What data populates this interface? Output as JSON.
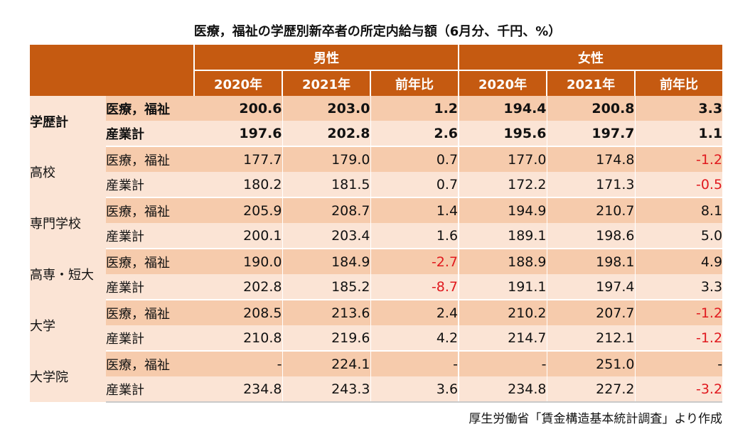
{
  "title": "医療，福祉の学歴別新卒者の所定内給与額（6月分、千円、%）",
  "source": "厚生労働省「賃金構造基本統計調査」より作成",
  "colors": {
    "header": "#c55a11",
    "row_odd": "#f6cbac",
    "row_even": "#fbe4d5",
    "negative": "#e0191e"
  },
  "chart_data": {
    "type": "table",
    "title": "医療，福祉の学歴別新卒者の所定内給与額（6月分、千円、%）",
    "groups": [
      {
        "label": "男性",
        "columns": [
          "2020年",
          "2021年",
          "前年比"
        ]
      },
      {
        "label": "女性",
        "columns": [
          "2020年",
          "2021年",
          "前年比"
        ]
      }
    ],
    "rows": [
      {
        "category": "学歴計",
        "items": [
          {
            "label": "医療，福祉",
            "values": [
              "200.6",
              "203.0",
              "1.2",
              "194.4",
              "200.8",
              "3.3"
            ]
          },
          {
            "label": "産業計",
            "values": [
              "197.6",
              "202.8",
              "2.6",
              "195.6",
              "197.7",
              "1.1"
            ]
          }
        ]
      },
      {
        "category": "高校",
        "items": [
          {
            "label": "医療，福祉",
            "values": [
              "177.7",
              "179.0",
              "0.7",
              "177.0",
              "174.8",
              "-1.2"
            ]
          },
          {
            "label": "産業計",
            "values": [
              "180.2",
              "181.5",
              "0.7",
              "172.2",
              "171.3",
              "-0.5"
            ]
          }
        ]
      },
      {
        "category": "専門学校",
        "items": [
          {
            "label": "医療，福祉",
            "values": [
              "205.9",
              "208.7",
              "1.4",
              "194.9",
              "210.7",
              "8.1"
            ]
          },
          {
            "label": "産業計",
            "values": [
              "200.1",
              "203.4",
              "1.6",
              "189.1",
              "198.6",
              "5.0"
            ]
          }
        ]
      },
      {
        "category": "高専・短大",
        "items": [
          {
            "label": "医療，福祉",
            "values": [
              "190.0",
              "184.9",
              "-2.7",
              "188.9",
              "198.1",
              "4.9"
            ]
          },
          {
            "label": "産業計",
            "values": [
              "202.8",
              "185.2",
              "-8.7",
              "191.1",
              "197.4",
              "3.3"
            ]
          }
        ]
      },
      {
        "category": "大学",
        "items": [
          {
            "label": "医療，福祉",
            "values": [
              "208.5",
              "213.6",
              "2.4",
              "210.2",
              "207.7",
              "-1.2"
            ]
          },
          {
            "label": "産業計",
            "values": [
              "210.8",
              "219.6",
              "4.2",
              "214.7",
              "212.1",
              "-1.2"
            ]
          }
        ]
      },
      {
        "category": "大学院",
        "items": [
          {
            "label": "医療，福祉",
            "values": [
              "-",
              "224.1",
              "-",
              "-",
              "251.0",
              "-"
            ]
          },
          {
            "label": "産業計",
            "values": [
              "234.8",
              "243.3",
              "3.6",
              "234.8",
              "227.2",
              "-3.2"
            ]
          }
        ]
      }
    ]
  }
}
